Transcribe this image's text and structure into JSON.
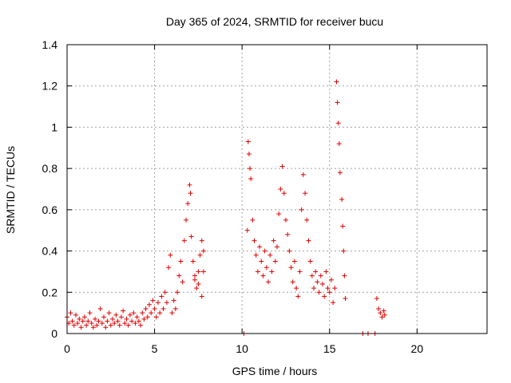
{
  "chart_data": {
    "type": "scatter",
    "title": "Day 365 of 2024, SRMTID for receiver bucu",
    "xlabel": "GPS time / hours",
    "ylabel": "SRMTID / TECUs",
    "xlim": [
      0,
      24
    ],
    "ylim": [
      0,
      1.4
    ],
    "x_ticks": [
      0,
      5,
      10,
      15,
      20
    ],
    "y_ticks": [
      0,
      0.2,
      0.4,
      0.6,
      0.8,
      1.0,
      1.2,
      1.4
    ],
    "x_tick_labels": [
      "0",
      "5",
      "10",
      "15",
      "20"
    ],
    "y_tick_labels": [
      "0",
      "0.2",
      "0.4",
      "0.6",
      "0.8",
      "1",
      "1.2",
      "1.4"
    ],
    "grid": true,
    "marker": "+",
    "color": "#e00000",
    "series": [
      {
        "name": "SRMTID",
        "points": [
          [
            0.0,
            0.08
          ],
          [
            0.1,
            0.05
          ],
          [
            0.2,
            0.1
          ],
          [
            0.3,
            0.06
          ],
          [
            0.4,
            0.04
          ],
          [
            0.5,
            0.09
          ],
          [
            0.6,
            0.05
          ],
          [
            0.7,
            0.07
          ],
          [
            0.8,
            0.03
          ],
          [
            0.9,
            0.06
          ],
          [
            1.0,
            0.08
          ],
          [
            1.1,
            0.04
          ],
          [
            1.2,
            0.06
          ],
          [
            1.3,
            0.1
          ],
          [
            1.4,
            0.05
          ],
          [
            1.5,
            0.03
          ],
          [
            1.6,
            0.07
          ],
          [
            1.7,
            0.04
          ],
          [
            1.8,
            0.06
          ],
          [
            1.9,
            0.12
          ],
          [
            2.0,
            0.05
          ],
          [
            2.1,
            0.08
          ],
          [
            2.2,
            0.03
          ],
          [
            2.3,
            0.06
          ],
          [
            2.4,
            0.1
          ],
          [
            2.5,
            0.04
          ],
          [
            2.6,
            0.07
          ],
          [
            2.7,
            0.05
          ],
          [
            2.8,
            0.09
          ],
          [
            2.9,
            0.06
          ],
          [
            3.0,
            0.04
          ],
          [
            3.1,
            0.08
          ],
          [
            3.2,
            0.11
          ],
          [
            3.3,
            0.05
          ],
          [
            3.4,
            0.07
          ],
          [
            3.5,
            0.04
          ],
          [
            3.6,
            0.09
          ],
          [
            3.7,
            0.06
          ],
          [
            3.8,
            0.1
          ],
          [
            3.9,
            0.05
          ],
          [
            4.0,
            0.08
          ],
          [
            4.1,
            0.06
          ],
          [
            4.2,
            0.04
          ],
          [
            4.3,
            0.1
          ],
          [
            4.4,
            0.07
          ],
          [
            4.5,
            0.12
          ],
          [
            4.6,
            0.08
          ],
          [
            4.7,
            0.14
          ],
          [
            4.8,
            0.1
          ],
          [
            4.9,
            0.16
          ],
          [
            5.0,
            0.12
          ],
          [
            5.1,
            0.08
          ],
          [
            5.2,
            0.15
          ],
          [
            5.3,
            0.1
          ],
          [
            5.4,
            0.18
          ],
          [
            5.5,
            0.12
          ],
          [
            5.6,
            0.2
          ],
          [
            5.7,
            0.15
          ],
          [
            5.8,
            0.32
          ],
          [
            5.9,
            0.38
          ],
          [
            6.0,
            0.1
          ],
          [
            6.1,
            0.16
          ],
          [
            6.2,
            0.12
          ],
          [
            6.3,
            0.2
          ],
          [
            6.4,
            0.28
          ],
          [
            6.5,
            0.35
          ],
          [
            6.6,
            0.25
          ],
          [
            6.7,
            0.45
          ],
          [
            6.8,
            0.55
          ],
          [
            6.9,
            0.63
          ],
          [
            7.0,
            0.72
          ],
          [
            7.05,
            0.68
          ],
          [
            7.1,
            0.47
          ],
          [
            7.2,
            0.35
          ],
          [
            7.3,
            0.26
          ],
          [
            7.4,
            0.22
          ],
          [
            7.5,
            0.3
          ],
          [
            7.6,
            0.38
          ],
          [
            7.7,
            0.45
          ],
          [
            7.8,
            0.4
          ],
          [
            7.3,
            0.28
          ],
          [
            7.5,
            0.24
          ],
          [
            7.7,
            0.18
          ],
          [
            7.8,
            0.3
          ],
          [
            10.1,
            0.0
          ],
          [
            10.3,
            0.5
          ],
          [
            10.35,
            0.93
          ],
          [
            10.4,
            0.87
          ],
          [
            10.45,
            0.8
          ],
          [
            10.5,
            0.75
          ],
          [
            10.6,
            0.55
          ],
          [
            10.7,
            0.45
          ],
          [
            10.8,
            0.38
          ],
          [
            10.9,
            0.3
          ],
          [
            11.0,
            0.42
          ],
          [
            11.1,
            0.35
          ],
          [
            11.2,
            0.28
          ],
          [
            11.3,
            0.4
          ],
          [
            11.4,
            0.32
          ],
          [
            11.5,
            0.25
          ],
          [
            11.6,
            0.38
          ],
          [
            11.7,
            0.3
          ],
          [
            11.8,
            0.45
          ],
          [
            11.9,
            0.35
          ],
          [
            12.0,
            0.42
          ],
          [
            12.1,
            0.58
          ],
          [
            12.2,
            0.7
          ],
          [
            12.3,
            0.81
          ],
          [
            12.4,
            0.68
          ],
          [
            12.5,
            0.55
          ],
          [
            12.6,
            0.48
          ],
          [
            12.7,
            0.4
          ],
          [
            12.8,
            0.32
          ],
          [
            12.9,
            0.25
          ],
          [
            13.0,
            0.35
          ],
          [
            13.1,
            0.22
          ],
          [
            13.2,
            0.18
          ],
          [
            13.3,
            0.3
          ],
          [
            13.4,
            0.6
          ],
          [
            13.5,
            0.77
          ],
          [
            13.6,
            0.68
          ],
          [
            13.7,
            0.55
          ],
          [
            13.8,
            0.45
          ],
          [
            13.9,
            0.35
          ],
          [
            14.0,
            0.28
          ],
          [
            14.1,
            0.22
          ],
          [
            14.2,
            0.3
          ],
          [
            14.3,
            0.25
          ],
          [
            14.4,
            0.2
          ],
          [
            14.5,
            0.28
          ],
          [
            14.6,
            0.24
          ],
          [
            14.7,
            0.18
          ],
          [
            14.8,
            0.3
          ],
          [
            14.9,
            0.22
          ],
          [
            15.0,
            0.2
          ],
          [
            15.1,
            0.26
          ],
          [
            15.2,
            0.15
          ],
          [
            15.3,
            0.22
          ],
          [
            15.4,
            1.22
          ],
          [
            15.45,
            1.12
          ],
          [
            15.5,
            1.02
          ],
          [
            15.55,
            0.92
          ],
          [
            15.6,
            0.78
          ],
          [
            15.7,
            0.65
          ],
          [
            15.75,
            0.52
          ],
          [
            15.8,
            0.4
          ],
          [
            15.85,
            0.28
          ],
          [
            15.9,
            0.17
          ],
          [
            16.9,
            0.0
          ],
          [
            17.2,
            0.0
          ],
          [
            17.6,
            0.0
          ],
          [
            17.7,
            0.17
          ],
          [
            17.8,
            0.12
          ],
          [
            17.9,
            0.1
          ],
          [
            18.0,
            0.08
          ],
          [
            18.1,
            0.11
          ],
          [
            18.15,
            0.09
          ]
        ]
      }
    ]
  }
}
